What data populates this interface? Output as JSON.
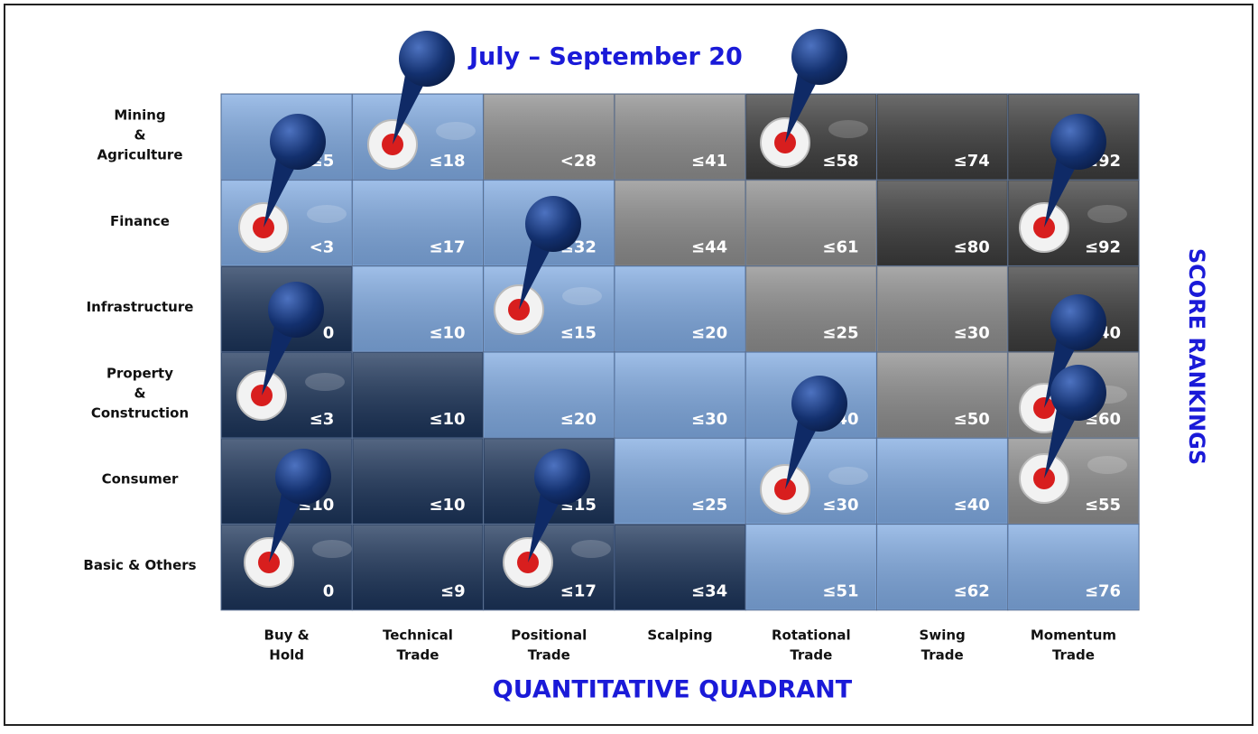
{
  "title": "July – September 20",
  "x_axis_title": "QUANTITATIVE QUADRANT",
  "y_axis_title": "SCORE RANKINGS",
  "columns": [
    [
      "Buy &",
      "Hold"
    ],
    [
      "Technical",
      "Trade"
    ],
    [
      "Positional",
      "Trade"
    ],
    [
      "Scalping"
    ],
    [
      "Rotational",
      "Trade"
    ],
    [
      "Swing",
      "Trade"
    ],
    [
      "Momentum",
      "Trade"
    ]
  ],
  "rows": [
    {
      "label": [
        "Mining",
        "&",
        "Agriculture"
      ],
      "cells": [
        {
          "text": "≤5",
          "color": "#7fa9e0"
        },
        {
          "text": "≤18",
          "color": "#7fa9e0"
        },
        {
          "text": "<28",
          "color": "#8c8c8c"
        },
        {
          "text": "≤41",
          "color": "#8c8c8c"
        },
        {
          "text": "≤58",
          "color": "#3b3b3b"
        },
        {
          "text": "≤74",
          "color": "#3b3b3b"
        },
        {
          "text": "≤92",
          "color": "#3b3b3b"
        }
      ]
    },
    {
      "label": [
        "Finance"
      ],
      "cells": [
        {
          "text": "<3",
          "color": "#7fa9e0"
        },
        {
          "text": "≤17",
          "color": "#7fa9e0"
        },
        {
          "text": "≤32",
          "color": "#7fa9e0"
        },
        {
          "text": "≤44",
          "color": "#8c8c8c"
        },
        {
          "text": "≤61",
          "color": "#8c8c8c"
        },
        {
          "text": "≤80",
          "color": "#3b3b3b"
        },
        {
          "text": "≤92",
          "color": "#3b3b3b"
        }
      ]
    },
    {
      "label": [
        "Infrastructure"
      ],
      "cells": [
        {
          "text": "0",
          "color": "#1b3358"
        },
        {
          "text": "≤10",
          "color": "#7fa9e0"
        },
        {
          "text": "≤15",
          "color": "#7fa9e0"
        },
        {
          "text": "≤20",
          "color": "#7fa9e0"
        },
        {
          "text": "≤25",
          "color": "#8c8c8c"
        },
        {
          "text": "≤30",
          "color": "#8c8c8c"
        },
        {
          "text": "≤40",
          "color": "#3b3b3b"
        }
      ]
    },
    {
      "label": [
        "Property",
        "&",
        "Construction"
      ],
      "cells": [
        {
          "text": "≤3",
          "color": "#1b3358"
        },
        {
          "text": "≤10",
          "color": "#1b3358"
        },
        {
          "text": "≤20",
          "color": "#7fa9e0"
        },
        {
          "text": "≤30",
          "color": "#7fa9e0"
        },
        {
          "text": "≤40",
          "color": "#7fa9e0"
        },
        {
          "text": "≤50",
          "color": "#8c8c8c"
        },
        {
          "text": "≤60",
          "color": "#8c8c8c"
        }
      ]
    },
    {
      "label": [
        "Consumer"
      ],
      "cells": [
        {
          "text": "≤10",
          "color": "#1b3358"
        },
        {
          "text": "≤10",
          "color": "#1b3358"
        },
        {
          "text": "≤15",
          "color": "#1b3358"
        },
        {
          "text": "≤25",
          "color": "#7fa9e0"
        },
        {
          "text": "≤30",
          "color": "#7fa9e0"
        },
        {
          "text": "≤40",
          "color": "#7fa9e0"
        },
        {
          "text": "≤55",
          "color": "#8c8c8c"
        }
      ]
    },
    {
      "label": [
        "Basic & Others"
      ],
      "cells": [
        {
          "text": "0",
          "color": "#1b3358"
        },
        {
          "text": "≤9",
          "color": "#1b3358"
        },
        {
          "text": "≤17",
          "color": "#1b3358"
        },
        {
          "text": "≤34",
          "color": "#1b3358"
        },
        {
          "text": "≤51",
          "color": "#7fa9e0"
        },
        {
          "text": "≤62",
          "color": "#7fa9e0"
        },
        {
          "text": "≤76",
          "color": "#7fa9e0"
        }
      ]
    }
  ]
}
